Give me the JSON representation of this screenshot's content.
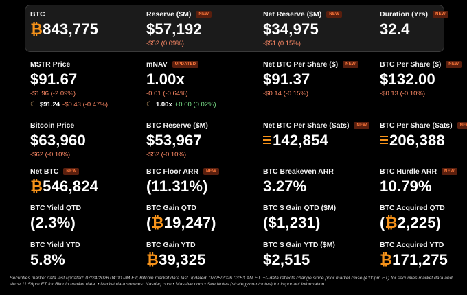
{
  "colors": {
    "accent": "#f7931a",
    "negative": "#ff8a66",
    "positive": "#7be38b",
    "badge_bg": "#5a1f0e",
    "badge_fg": "#ff7a3d"
  },
  "badge_new": "NEW",
  "badge_updated": "UPDATED",
  "header": {
    "btc": {
      "label": "BTC",
      "symbol": "₿",
      "value": "843,775"
    },
    "reserve": {
      "label": "Reserve ($M)",
      "value": "$57,192",
      "change": "-$52 (0.09%)"
    },
    "net_reserve": {
      "label": "Net Reserve ($M)",
      "value": "$34,975",
      "change": "-$51 (0.15%)"
    },
    "duration": {
      "label": "Duration (Yrs)",
      "value": "32.4"
    }
  },
  "row2": {
    "mstr": {
      "label": "MSTR Price",
      "value": "$91.67",
      "change": "-$1.96 (-2.09%)",
      "ah_price": "$91.24",
      "ah_change": "-$0.43 (-0.47%)"
    },
    "mnav": {
      "label": "mNAV",
      "value": "1.00x",
      "change": "-0.01 (-0.64%)",
      "ah_price": "1.00x",
      "ah_change": "+0.00 (0.02%)"
    },
    "net_btc_ps": {
      "label": "Net BTC Per Share ($)",
      "value": "$91.37",
      "change": "-$0.14 (-0.15%)"
    },
    "btc_ps": {
      "label": "BTC Per Share ($)",
      "value": "$132.00",
      "change": "-$0.13 (-0.10%)"
    }
  },
  "row3": {
    "bitcoin_price": {
      "label": "Bitcoin Price",
      "value": "$63,960",
      "change": "-$62 (-0.10%)"
    },
    "btc_reserve": {
      "label": "BTC Reserve ($M)",
      "value": "$53,967",
      "change": "-$52 (-0.10%)"
    },
    "net_btc_ps_sats": {
      "label": "Net BTC Per Share (Sats)",
      "value": "142,854"
    },
    "btc_ps_sats": {
      "label": "BTC Per Share (Sats)",
      "value": "206,388"
    }
  },
  "row4": {
    "net_btc": {
      "label": "Net BTC",
      "symbol": "₿",
      "value": "546,824"
    },
    "btc_floor_arr": {
      "label": "BTC Floor ARR",
      "value": "(11.31%)"
    },
    "btc_breakeven_arr": {
      "label": "BTC Breakeven ARR",
      "value": "3.27%"
    },
    "btc_hurdle_arr": {
      "label": "BTC Hurdle ARR",
      "value": "10.79%"
    }
  },
  "row5": {
    "yield_qtd": {
      "label": "BTC Yield QTD",
      "value": "(2.3%)"
    },
    "gain_qtd": {
      "label": "BTC Gain QTD",
      "open": "(",
      "symbol": "₿",
      "value": "19,247)"
    },
    "dollar_gain_qtd": {
      "label": "BTC $ Gain QTD ($M)",
      "value": "($1,231)"
    },
    "acquired_qtd": {
      "label": "BTC Acquired QTD",
      "open": "(",
      "symbol": "₿",
      "value": "2,225)"
    }
  },
  "row6": {
    "yield_ytd": {
      "label": "BTC Yield YTD",
      "value": "5.8%"
    },
    "gain_ytd": {
      "label": "BTC Gain YTD",
      "symbol": "₿",
      "value": "39,325"
    },
    "dollar_gain_ytd": {
      "label": "BTC $ Gain YTD ($M)",
      "value": "$2,515"
    },
    "acquired_ytd": {
      "label": "BTC Acquired YTD",
      "symbol": "₿",
      "value": "171,275"
    }
  },
  "footer": "Securities market data last updated: 07/24/2026 04:00 PM ET; Bitcoin market data last updated: 07/25/2026 03:53 AM ET. +/- data reflects change since prior market close (4:00pm ET) for securities market data and since 11:59pm ET for Bitcoin market data.   •   Market data sources: Nasdaq.com  •  Massive.com  •  See Notes (strategy.com/notes) for important information."
}
